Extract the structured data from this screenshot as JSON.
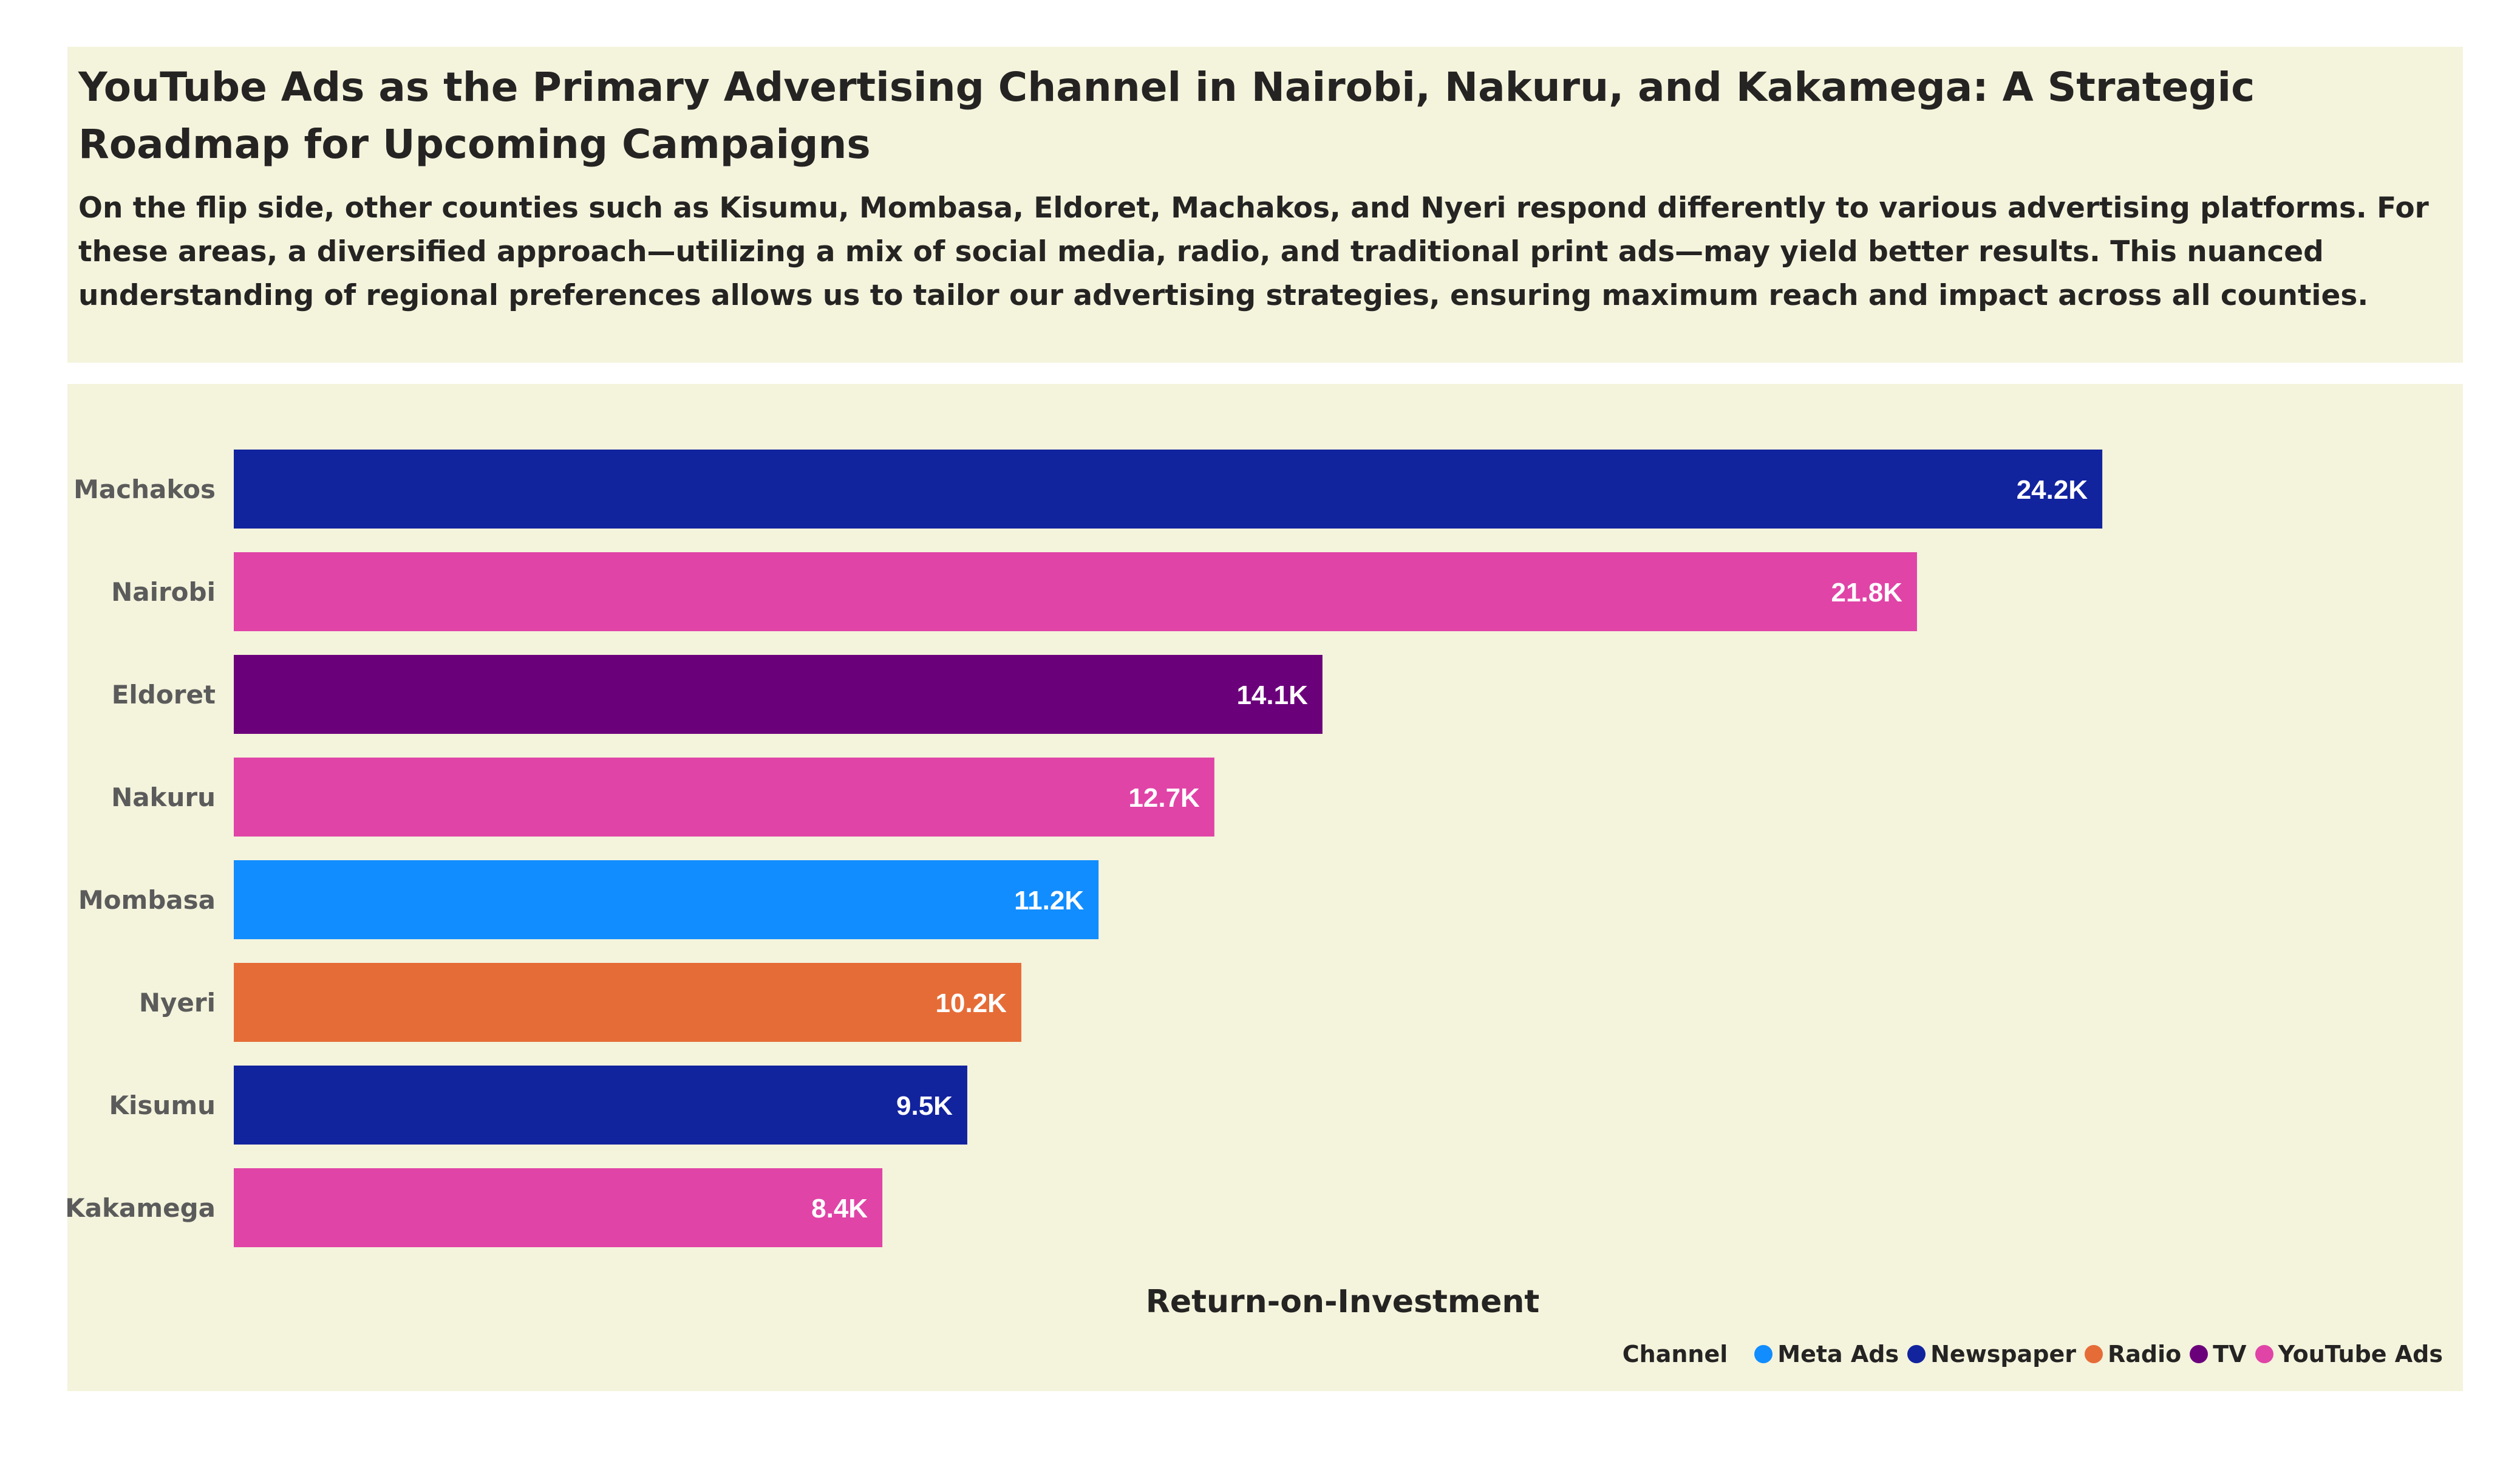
{
  "header": {
    "title": "YouTube Ads as the Primary Advertising Channel in Nairobi, Nakuru, and Kakamega: A Strategic Roadmap for Upcoming Campaigns",
    "subtitle": "On the flip side, other counties such as Kisumu, Mombasa, Eldoret, Machakos, and Nyeri respond differently to various advertising platforms. For these areas, a diversified approach—utilizing a mix of social media, radio, and traditional print ads—may yield better results. This nuanced understanding of regional preferences allows us to tailor our advertising strategies, ensuring maximum reach and impact across all counties."
  },
  "channel_colors": {
    "Meta Ads": "#118dff",
    "Newspaper": "#12239e",
    "Radio": "#e66c37",
    "TV": "#6b007b",
    "YouTube Ads": "#e044a7"
  },
  "chart_data": {
    "type": "bar",
    "orientation": "horizontal",
    "xlabel": "Return-on-Investment",
    "ylabel": "",
    "grid": false,
    "xlim": [
      0,
      26000
    ],
    "categories": [
      "Machakos",
      "Nairobi",
      "Eldoret",
      "Nakuru",
      "Mombasa",
      "Nyeri",
      "Kisumu",
      "Kakamega"
    ],
    "values": [
      24200,
      21800,
      14100,
      12700,
      11200,
      10200,
      9500,
      8400
    ],
    "data_labels": [
      "24.2K",
      "21.8K",
      "14.1K",
      "12.7K",
      "11.2K",
      "10.2K",
      "9.5K",
      "8.4K"
    ],
    "channels": [
      "Newspaper",
      "YouTube Ads",
      "TV",
      "YouTube Ads",
      "Meta Ads",
      "Radio",
      "Newspaper",
      "YouTube Ads"
    ],
    "legend": {
      "title": "Channel",
      "placement": "bottom-right",
      "entries": [
        "Meta Ads",
        "Newspaper",
        "Radio",
        "TV",
        "YouTube Ads"
      ]
    }
  }
}
